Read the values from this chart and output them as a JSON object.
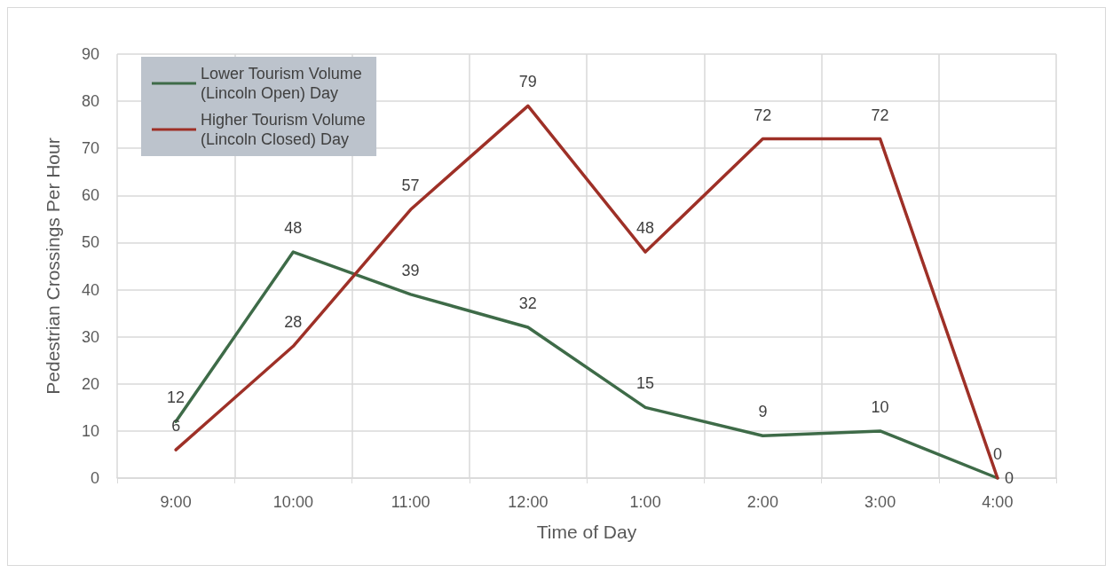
{
  "chart_data": {
    "type": "line",
    "xlabel": "Time of Day",
    "ylabel": "Pedestrian Crossings Per Hour",
    "categories": [
      "9:00",
      "10:00",
      "11:00",
      "12:00",
      "1:00",
      "2:00",
      "3:00",
      "4:00"
    ],
    "series": [
      {
        "name": "Lower Tourism Volume\n(Lincoln Open) Day",
        "color": "#3e6b48",
        "values": [
          12,
          48,
          39,
          32,
          15,
          9,
          10,
          0
        ]
      },
      {
        "name": "Higher Tourism Volume\n(Lincoln Closed) Day",
        "color": "#9e3027",
        "values": [
          6,
          28,
          57,
          79,
          48,
          72,
          72,
          0
        ]
      }
    ],
    "ylim": [
      0,
      90
    ],
    "yticks": [
      0,
      10,
      20,
      30,
      40,
      50,
      60,
      70,
      80,
      90
    ],
    "grid": true,
    "legend": "top left",
    "data_labels": true,
    "marker": "none",
    "line_style": "solid"
  }
}
